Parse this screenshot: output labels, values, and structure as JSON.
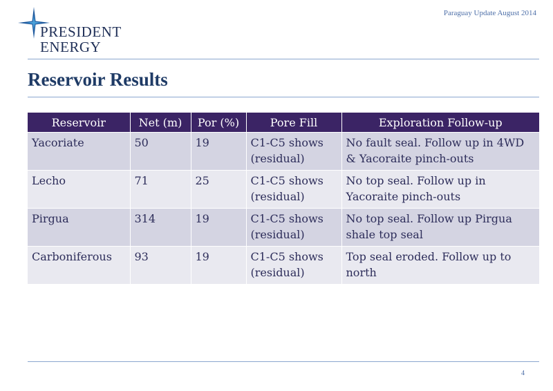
{
  "header": {
    "logo_line1": "PRESIDENT",
    "logo_line2": "ENERGY",
    "note": "Paraguay Update August 2014"
  },
  "title": "Reservoir Results",
  "table": {
    "headers": [
      "Reservoir",
      "Net (m)",
      "Por (%)",
      "Pore Fill",
      "Exploration Follow-up"
    ],
    "rows": [
      [
        "Yacoriate",
        "50",
        "19",
        "C1-C5 shows (residual)",
        "No fault seal. Follow up in 4WD & Yacoraite pinch-outs"
      ],
      [
        "Lecho",
        "71",
        "25",
        "C1-C5 shows (residual)",
        "No top seal. Follow up in Yacoraite pinch-outs"
      ],
      [
        "Pirgua",
        "314",
        "19",
        "C1-C5 shows (residual)",
        "No top seal. Follow up Pirgua shale top seal"
      ],
      [
        "Carboniferous",
        "93",
        "19",
        "C1-C5 shows (residual)",
        "Top seal eroded. Follow up to north"
      ]
    ]
  },
  "footer": {
    "page_number": "4"
  }
}
